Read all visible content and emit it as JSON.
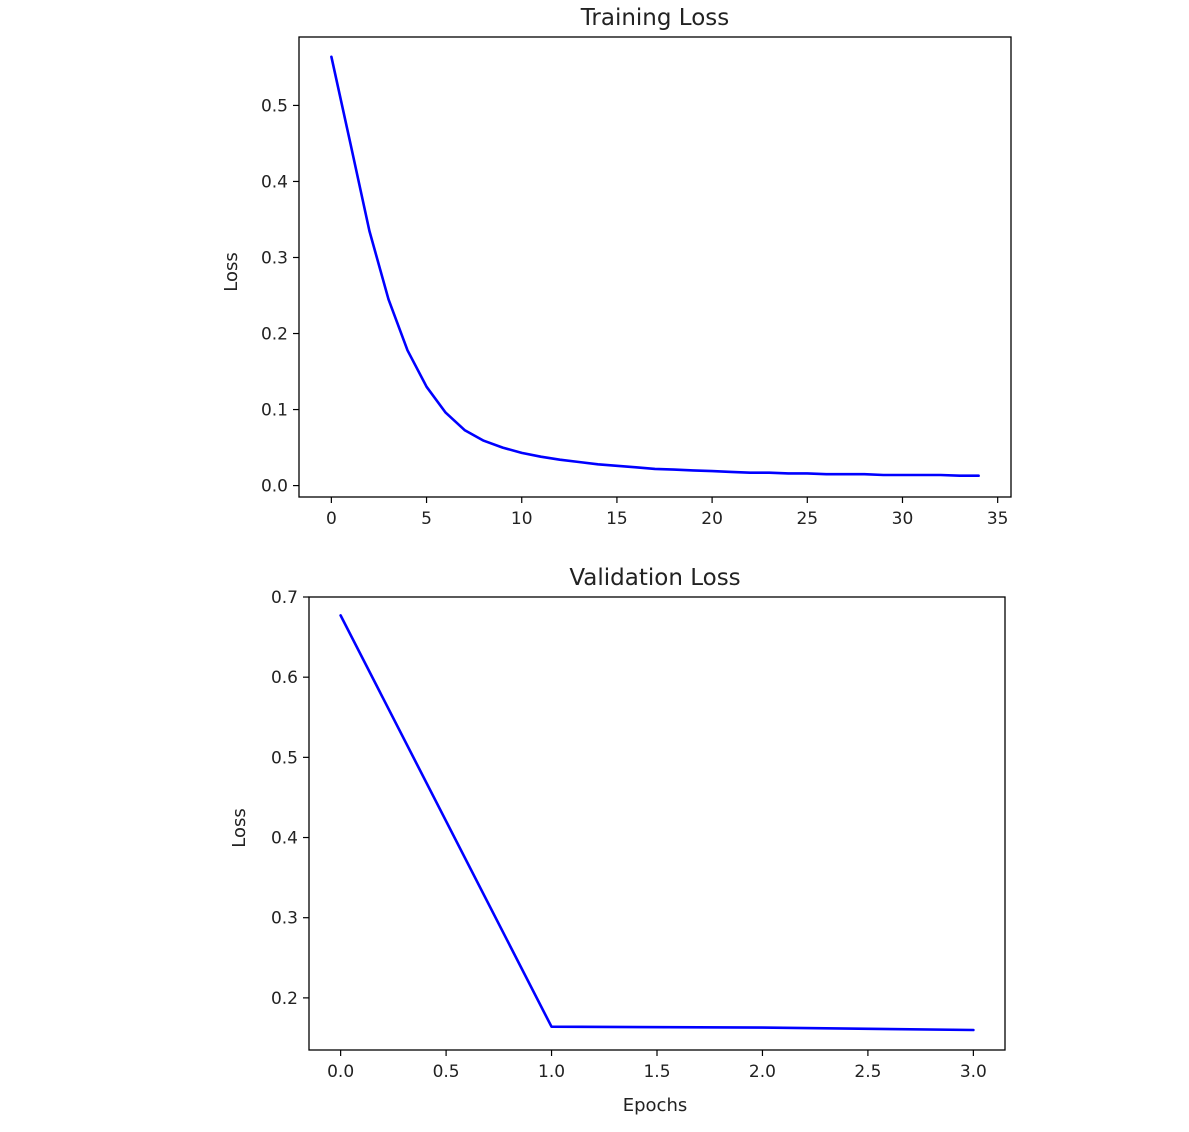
{
  "chart_data": [
    {
      "type": "line",
      "title": "Training Loss",
      "xlabel": "",
      "ylabel": "Loss",
      "xlim": [
        -1.7,
        35.7
      ],
      "ylim": [
        -0.015,
        0.59
      ],
      "xticks": [
        0,
        5,
        10,
        15,
        20,
        25,
        30,
        35
      ],
      "xtick_labels": [
        "0",
        "5",
        "10",
        "15",
        "20",
        "25",
        "30",
        "35"
      ],
      "yticks": [
        0.0,
        0.1,
        0.2,
        0.3,
        0.4,
        0.5
      ],
      "ytick_labels": [
        "0.0",
        "0.1",
        "0.2",
        "0.3",
        "0.4",
        "0.5"
      ],
      "grid": false,
      "series": [
        {
          "color": "#0000ff",
          "x": [
            0,
            1,
            2,
            3,
            4,
            5,
            6,
            7,
            8,
            9,
            10,
            11,
            12,
            13,
            14,
            15,
            16,
            17,
            18,
            19,
            20,
            21,
            22,
            23,
            24,
            25,
            26,
            27,
            28,
            29,
            30,
            31,
            32,
            33,
            34
          ],
          "y": [
            0.564,
            0.45,
            0.335,
            0.245,
            0.178,
            0.13,
            0.096,
            0.073,
            0.059,
            0.05,
            0.043,
            0.038,
            0.034,
            0.031,
            0.028,
            0.026,
            0.024,
            0.022,
            0.021,
            0.02,
            0.019,
            0.018,
            0.017,
            0.017,
            0.016,
            0.016,
            0.015,
            0.015,
            0.015,
            0.014,
            0.014,
            0.014,
            0.014,
            0.013,
            0.013
          ]
        }
      ]
    },
    {
      "type": "line",
      "title": "Validation Loss",
      "xlabel": "Epochs",
      "ylabel": "Loss",
      "xlim": [
        -0.15,
        3.15
      ],
      "ylim": [
        0.135,
        0.7
      ],
      "xticks": [
        0.0,
        0.5,
        1.0,
        1.5,
        2.0,
        2.5,
        3.0
      ],
      "xtick_labels": [
        "0.0",
        "0.5",
        "1.0",
        "1.5",
        "2.0",
        "2.5",
        "3.0"
      ],
      "yticks": [
        0.2,
        0.3,
        0.4,
        0.5,
        0.6,
        0.7
      ],
      "ytick_labels": [
        "0.2",
        "0.3",
        "0.4",
        "0.5",
        "0.6",
        "0.7"
      ],
      "grid": false,
      "series": [
        {
          "color": "#0000ff",
          "x": [
            0,
            1,
            2,
            3
          ],
          "y": [
            0.677,
            0.164,
            0.163,
            0.16
          ]
        }
      ]
    }
  ]
}
